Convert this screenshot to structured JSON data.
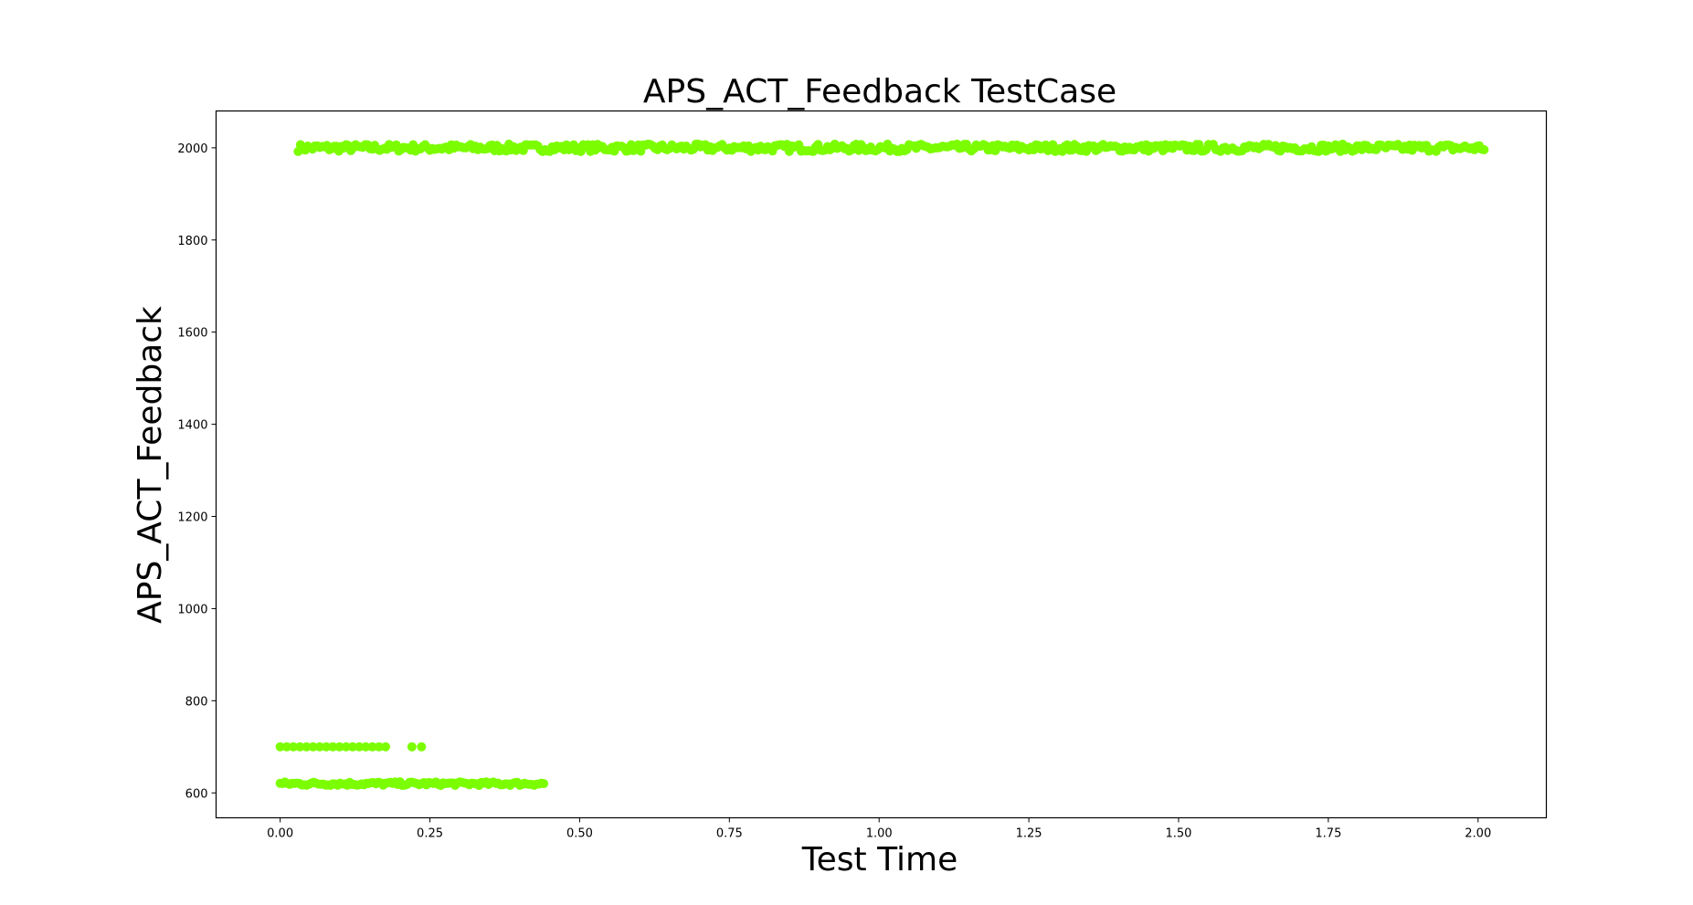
{
  "chart_data": {
    "type": "scatter",
    "title": "APS_ACT_Feedback TestCase",
    "xlabel": "Test Time",
    "ylabel": "APS_ACT_Feedback",
    "xlim": [
      -0.107,
      2.114
    ],
    "ylim": [
      546,
      2080
    ],
    "xticks": [
      0.0,
      0.25,
      0.5,
      0.75,
      1.0,
      1.25,
      1.5,
      1.75,
      2.0
    ],
    "xtick_labels": [
      "0.00",
      "0.25",
      "0.50",
      "0.75",
      "1.00",
      "1.25",
      "1.50",
      "1.75",
      "2.00"
    ],
    "yticks": [
      600,
      800,
      1000,
      1200,
      1400,
      1600,
      1800,
      2000
    ],
    "ytick_labels": [
      "600",
      "800",
      "1000",
      "1200",
      "1400",
      "1600",
      "1800",
      "2000"
    ],
    "grid": false,
    "marker_color": "#7cfc00",
    "series": [
      {
        "description_segments": [
          {
            "x_start": 0.03,
            "x_end": 2.01,
            "y": 2000,
            "y_jitter": 8,
            "step": 0.004
          },
          {
            "x_start": 0.0,
            "x_end": 0.44,
            "y": 620,
            "y_jitter": 4,
            "step": 0.004
          },
          {
            "x_start": 0.0,
            "x_end": 0.18,
            "y": 700,
            "y_jitter": 0,
            "step": 0.011
          }
        ],
        "points": [
          [
            0.22,
            700
          ],
          [
            0.236,
            700
          ]
        ]
      }
    ]
  }
}
